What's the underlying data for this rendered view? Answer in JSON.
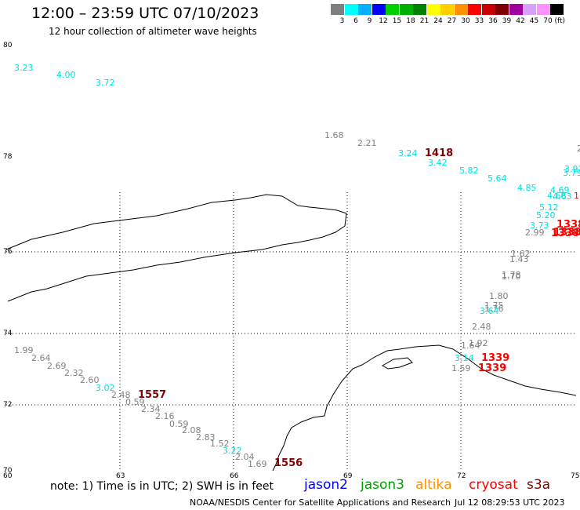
{
  "header": {
    "title": "12:00 – 23:59 UTC 07/10/2023",
    "subtitle": "12 hour collection of altimeter wave heights"
  },
  "legend": {
    "unit": "(ft)",
    "items": [
      {
        "color": "#7f7f7f",
        "label": "3"
      },
      {
        "color": "#00ffff",
        "label": "6"
      },
      {
        "color": "#00b0ff",
        "label": "9"
      },
      {
        "color": "#0000ff",
        "label": "12"
      },
      {
        "color": "#00d000",
        "label": "15"
      },
      {
        "color": "#00b000",
        "label": "18"
      },
      {
        "color": "#008000",
        "label": "21"
      },
      {
        "color": "#ffff00",
        "label": "24"
      },
      {
        "color": "#ffd000",
        "label": "27"
      },
      {
        "color": "#ff9000",
        "label": "30"
      },
      {
        "color": "#ff0000",
        "label": "33"
      },
      {
        "color": "#c80000",
        "label": "36"
      },
      {
        "color": "#800000",
        "label": "39"
      },
      {
        "color": "#a000a0",
        "label": "42"
      },
      {
        "color": "#d8a0ff",
        "label": "45"
      },
      {
        "color": "#ff90ff",
        "label": "70"
      },
      {
        "color": "#000000",
        "label": ""
      }
    ]
  },
  "map": {
    "lat_labels": [
      "80",
      "78",
      "76",
      "74",
      "72",
      "70"
    ],
    "lon_labels": [
      "60",
      "63",
      "66",
      "69",
      "72",
      "75"
    ],
    "observations": [
      {
        "t": "3.23",
        "c": "#00e0e0"
      },
      {
        "t": "4.00",
        "c": "#00e0e0"
      },
      {
        "t": "3.72",
        "c": "#00e0e0"
      },
      {
        "t": "1.68",
        "c": "#808080"
      },
      {
        "t": "2.21",
        "c": "#808080"
      },
      {
        "t": "3.24",
        "c": "#00e0e0"
      },
      {
        "t": "1418",
        "c": "#800000"
      },
      {
        "t": "3.42",
        "c": "#00e0e0"
      },
      {
        "t": "5.82",
        "c": "#00e0e0"
      },
      {
        "t": "5.64",
        "c": "#00e0e0"
      },
      {
        "t": "4.85",
        "c": "#00e0e0"
      },
      {
        "t": "4.69",
        "c": "#00e0e0"
      },
      {
        "t": "4.68",
        "c": "#00e0e0"
      },
      {
        "t": "4.63",
        "c": "#00e0e0"
      },
      {
        "t": "5.12",
        "c": "#00e0e0"
      },
      {
        "t": "5.20",
        "c": "#00e0e0"
      },
      {
        "t": "3.73",
        "c": "#00e0e0"
      },
      {
        "t": "2.99",
        "c": "#808080"
      },
      {
        "t": "1338",
        "c": "#ff0000"
      },
      {
        "t": "1338",
        "c": "#ff0000"
      },
      {
        "t": "1338",
        "c": "#ff0000"
      },
      {
        "t": "1",
        "c": "#ff0000"
      },
      {
        "t": "3.92",
        "c": "#00e0e0"
      },
      {
        "t": "3.79",
        "c": "#00e0e0"
      },
      {
        "t": "2",
        "c": "#808080"
      },
      {
        "t": "1.62",
        "c": "#808080"
      },
      {
        "t": "1.43",
        "c": "#808080"
      },
      {
        "t": "1.78",
        "c": "#808080"
      },
      {
        "t": "1.70",
        "c": "#808080"
      },
      {
        "t": "1.80",
        "c": "#808080"
      },
      {
        "t": "1.75",
        "c": "#808080"
      },
      {
        "t": "1.76",
        "c": "#808080"
      },
      {
        "t": "3.64",
        "c": "#00e0e0"
      },
      {
        "t": "2.48",
        "c": "#808080"
      },
      {
        "t": "1.92",
        "c": "#808080"
      },
      {
        "t": "1.64",
        "c": "#808080"
      },
      {
        "t": "3.14",
        "c": "#00e0e0"
      },
      {
        "t": "1339",
        "c": "#ff0000"
      },
      {
        "t": "1.59",
        "c": "#808080"
      },
      {
        "t": "1339",
        "c": "#ff0000"
      },
      {
        "t": "1.99",
        "c": "#808080"
      },
      {
        "t": "2.64",
        "c": "#808080"
      },
      {
        "t": "2.69",
        "c": "#808080"
      },
      {
        "t": "2.32",
        "c": "#808080"
      },
      {
        "t": "2.60",
        "c": "#808080"
      },
      {
        "t": "3.02",
        "c": "#00e0e0"
      },
      {
        "t": "2.48",
        "c": "#808080"
      },
      {
        "t": "1557",
        "c": "#800000"
      },
      {
        "t": "0.59",
        "c": "#808080"
      },
      {
        "t": "2.34",
        "c": "#808080"
      },
      {
        "t": "2.16",
        "c": "#808080"
      },
      {
        "t": "0.59",
        "c": "#808080"
      },
      {
        "t": "2.08",
        "c": "#808080"
      },
      {
        "t": "2.83",
        "c": "#808080"
      },
      {
        "t": "1.52",
        "c": "#808080"
      },
      {
        "t": "3.22",
        "c": "#00e0e0"
      },
      {
        "t": "2.04",
        "c": "#808080"
      },
      {
        "t": "1.69",
        "c": "#808080"
      },
      {
        "t": "1556",
        "c": "#800000"
      }
    ]
  },
  "footer": {
    "note": "note:  1) Time is in UTC;  2) SWH is in feet",
    "sats": [
      {
        "t": "jason2",
        "c": "#0000ff"
      },
      {
        "t": "jason3",
        "c": "#00a000"
      },
      {
        "t": "altika",
        "c": "#ff9000"
      },
      {
        "t": "cryosat",
        "c": "#ff0000"
      },
      {
        "t": "s3a",
        "c": "#800000"
      }
    ],
    "credit": "NOAA/NESDIS Center for Satellite Applications and Research",
    "timestamp": "Jul 12 08:29:53 UTC 2023"
  }
}
